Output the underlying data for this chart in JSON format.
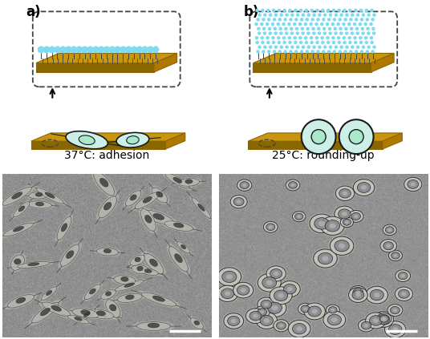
{
  "label_a": "a)",
  "label_b": "b)",
  "temp_label_a": "37°C: adhesion",
  "temp_label_b": "25°C: rounding-up",
  "background_color": "#ffffff",
  "gold_color": "#c8960c",
  "gold_shadow": "#8a6600",
  "gold_side": "#b07800",
  "polymer_color": "#7fdcf0",
  "cell_fill": "#ccf0e8",
  "cell_nucleus": "#aae8cc",
  "cell_edge": "#1a1a1a",
  "micro_bg_left": "#8a9a8a",
  "micro_bg_right": "#8a9898",
  "label_fontsize": 12,
  "temp_fontsize": 10
}
